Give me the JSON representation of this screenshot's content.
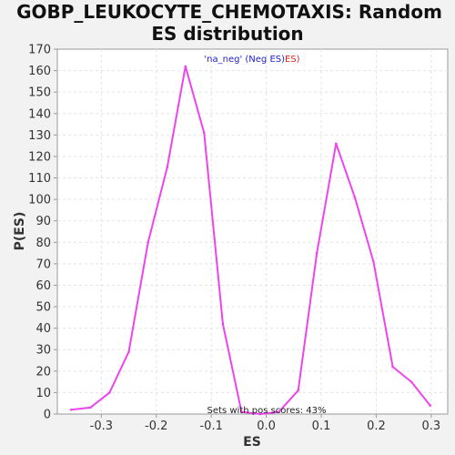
{
  "chart_data": {
    "type": "line",
    "title_line1": "GOBP_LEUKOCYTE_CHEMOTAXIS: Random",
    "title_line2": "ES distribution",
    "xlabel": "ES",
    "ylabel": "P(ES)",
    "xlim": [
      -0.38,
      0.33
    ],
    "ylim": [
      0,
      170
    ],
    "xticks": [
      -0.3,
      -0.2,
      -0.1,
      0.0,
      0.1,
      0.2,
      0.3
    ],
    "xtick_labels": [
      "-0.3",
      "-0.2",
      "-0.1",
      "0.0",
      "0.1",
      "0.2",
      "0.3"
    ],
    "yticks": [
      0,
      10,
      20,
      30,
      40,
      50,
      60,
      70,
      80,
      90,
      100,
      110,
      120,
      130,
      140,
      150,
      160,
      170
    ],
    "ytick_labels": [
      "0",
      "10",
      "20",
      "30",
      "40",
      "50",
      "60",
      "70",
      "80",
      "90",
      "100",
      "110",
      "120",
      "130",
      "140",
      "150",
      "160",
      "170"
    ],
    "grid": true,
    "series": [
      {
        "color": "#ee44ee",
        "x": [
          -0.355,
          -0.32,
          -0.285,
          -0.25,
          -0.215,
          -0.18,
          -0.147,
          -0.113,
          -0.079,
          -0.045,
          -0.011,
          0.023,
          0.058,
          0.092,
          0.127,
          0.161,
          0.195,
          0.23,
          0.264,
          0.298
        ],
        "y": [
          2,
          3,
          10,
          29,
          80,
          115,
          162,
          131,
          42,
          1,
          0,
          1,
          11,
          75,
          126,
          101,
          71,
          22,
          15,
          4
        ]
      }
    ],
    "legend": {
      "placement": "top-center",
      "part1": "'na_neg' (Neg ES)",
      "part1_color": "#2222cc",
      "part2": "ES)",
      "part2_color": "#dd2222"
    },
    "annotation": "Sets with pos scores: 43%",
    "colors": {
      "plot_bg": "#ffffff",
      "page_bg": "#f2f2f2",
      "axis": "#999999"
    }
  }
}
